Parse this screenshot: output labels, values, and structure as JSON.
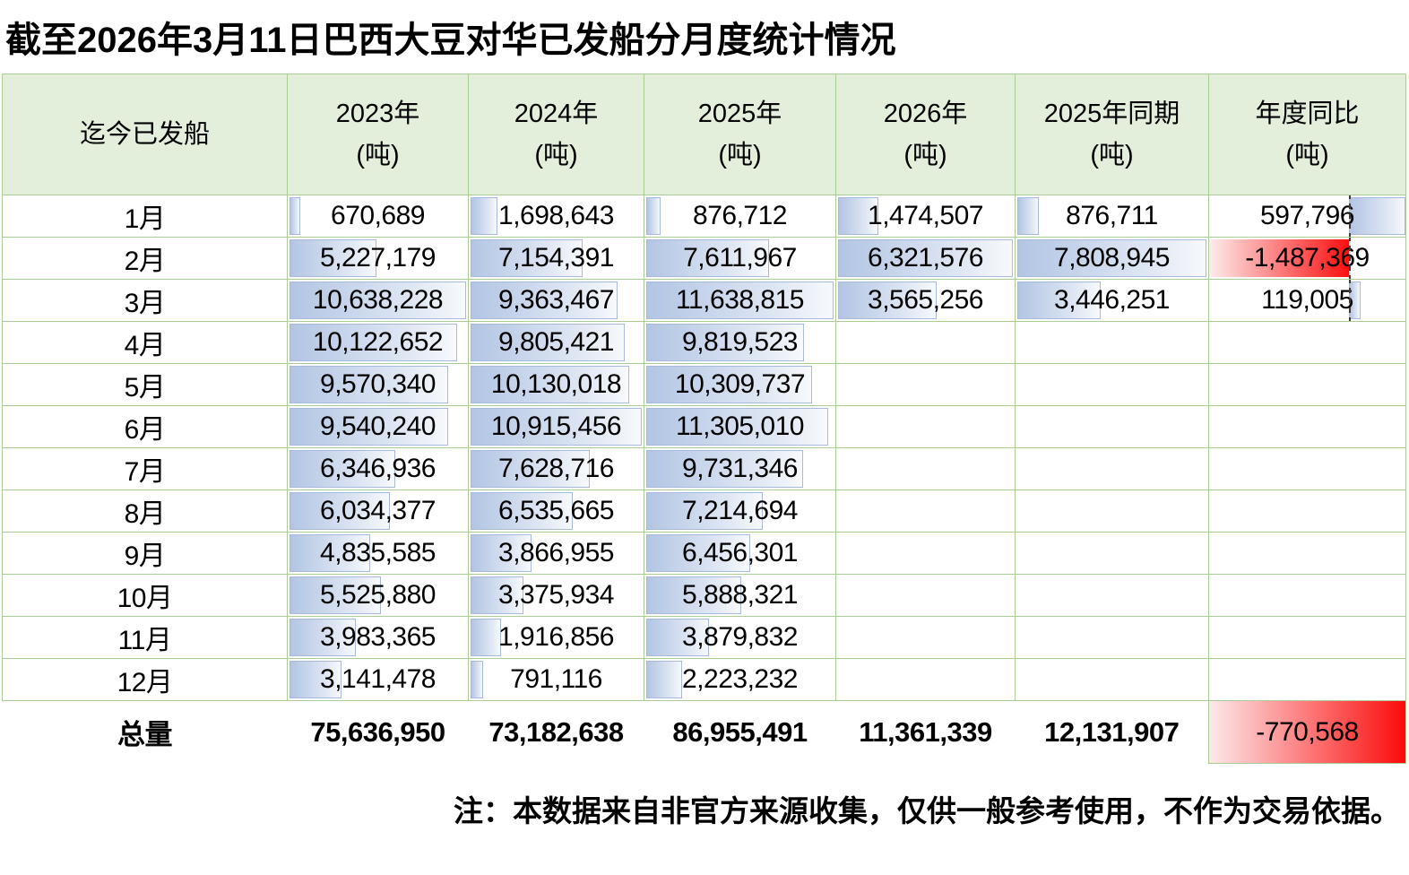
{
  "title": "截至2026年3月11日巴西大豆对华已发船分月度统计情况",
  "note": "注：本数据来自非官方来源收集，仅供一般参考使用，不作为交易依据。",
  "header": {
    "corner": "迄今已发船",
    "unit": "(吨)"
  },
  "colors": {
    "header_bg": "#e3efda",
    "grid_green": "#aacd96",
    "bar_blue": "#b2c5e4",
    "bar_red": "#fb0f0f"
  },
  "chart_data": {
    "type": "table",
    "title": "截至2026年3月11日巴西大豆对华已发船分月度统计情况",
    "row_header": "迄今已发船",
    "unit": "(吨)",
    "columns": [
      "2023年",
      "2024年",
      "2025年",
      "2026年",
      "2025年同期",
      "年度同比"
    ],
    "row_labels": [
      "1月",
      "2月",
      "3月",
      "4月",
      "5月",
      "6月",
      "7月",
      "8月",
      "9月",
      "10月",
      "11月",
      "12月"
    ],
    "total_label": "总量",
    "series": [
      {
        "name": "2023年(吨)",
        "values": [
          670689,
          5227179,
          10638228,
          10122652,
          9570340,
          9540240,
          6346936,
          6034377,
          4835585,
          5525880,
          3983365,
          3141478
        ],
        "total": 75636950
      },
      {
        "name": "2024年(吨)",
        "values": [
          1698643,
          7154391,
          9363467,
          9805421,
          10130018,
          10915456,
          7628716,
          6535665,
          3866955,
          3375934,
          1916856,
          791116
        ],
        "total": 73182638
      },
      {
        "name": "2025年(吨)",
        "values": [
          876712,
          7611967,
          11638815,
          9819523,
          10309737,
          11305010,
          9731346,
          7214694,
          6456301,
          5888321,
          3879832,
          2223232
        ],
        "total": 86955491
      },
      {
        "name": "2026年(吨)",
        "values": [
          1474507,
          6321576,
          3565256,
          null,
          null,
          null,
          null,
          null,
          null,
          null,
          null,
          null
        ],
        "total": 11361339
      },
      {
        "name": "2025年同期(吨)",
        "values": [
          876711,
          7808945,
          3446251,
          null,
          null,
          null,
          null,
          null,
          null,
          null,
          null,
          null
        ],
        "total": 12131907
      },
      {
        "name": "年度同比(吨)",
        "values": [
          597796,
          -1487369,
          119005,
          null,
          null,
          null,
          null,
          null,
          null,
          null,
          null,
          null
        ],
        "total": -770568
      }
    ],
    "layout_hints": {
      "bars": "per-column gradient data bars scaled to column max",
      "yoy_column": "diverging bars, blue positive right of dashed axis, red negative left of axis",
      "grid": "green gridlines, totals row borderless except yoy cell"
    }
  }
}
